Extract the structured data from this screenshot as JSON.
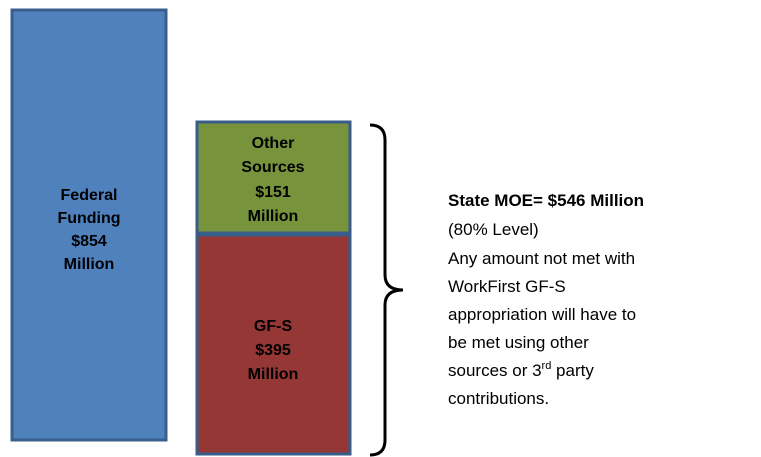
{
  "blocks": [
    {
      "lines": [
        "Federal",
        "Funding",
        "$854",
        "Million"
      ]
    },
    {
      "lines": [
        "Other",
        "Sources",
        "$151",
        "Million"
      ]
    },
    {
      "lines": [
        "GF-S",
        "$395",
        "Million"
      ]
    }
  ],
  "note": {
    "title": "State MOE= $546 Million",
    "lines": [
      "(80% Level)",
      "Any amount not met with",
      "WorkFirst GF-S",
      "appropriation will have to",
      "be met using other"
    ],
    "sup_line": {
      "text": "sources or 3",
      "sup": "rd",
      "after": " party"
    },
    "last": "contributions."
  }
}
